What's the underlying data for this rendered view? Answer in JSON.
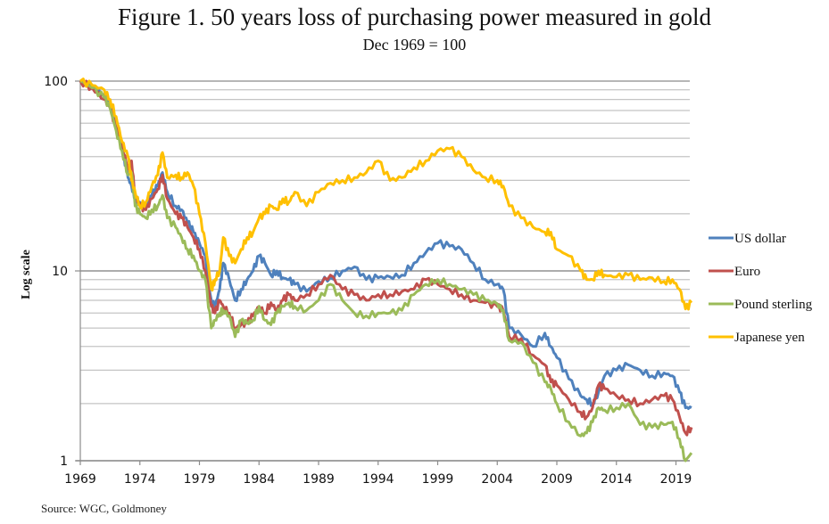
{
  "chart_data": {
    "type": "line",
    "title": "Figure 1. 50 years loss of purchasing power measured in gold",
    "subtitle": "Dec 1969 = 100",
    "xlabel": "",
    "ylabel": "Log scale",
    "yscale": "log",
    "ylim": [
      1,
      100
    ],
    "xlim": [
      1969,
      2020.3
    ],
    "y_ticks": [
      1,
      10,
      100
    ],
    "y_tick_labels": [
      "1",
      "10",
      "100"
    ],
    "x_ticks": [
      1969,
      1974,
      1979,
      1984,
      1989,
      1994,
      1999,
      2004,
      2009,
      2014,
      2019
    ],
    "x_tick_labels": [
      "1969",
      "1974",
      "1979",
      "1984",
      "1989",
      "1994",
      "1999",
      "2004",
      "2009",
      "2014",
      "2019"
    ],
    "grid": true,
    "legend_position": "right",
    "source": "Source: WGC, Goldmoney",
    "series": [
      {
        "name": "US dollar",
        "color": "#4F81BD",
        "x": [
          1969,
          1970,
          1971,
          1971.5,
          1972,
          1972.5,
          1973,
          1973.3,
          1973.6,
          1974,
          1974.5,
          1975,
          1975.5,
          1975.9,
          1976.3,
          1977,
          1977.5,
          1978,
          1978.5,
          1979,
          1979.5,
          1980,
          1980.3,
          1980.7,
          1981,
          1981.5,
          1982,
          1982.5,
          1983,
          1983.5,
          1984,
          1984.5,
          1985,
          1985.5,
          1986,
          1986.5,
          1987,
          1988,
          1989,
          1990,
          1991,
          1992,
          1993,
          1994,
          1995,
          1996,
          1997,
          1998,
          1999,
          2000,
          2001,
          2002,
          2003,
          2004,
          2004.5,
          2005,
          2006,
          2007,
          2008,
          2008.5,
          2009,
          2010,
          2011,
          2011.5,
          2012,
          2012.5,
          2013,
          2014,
          2015,
          2016,
          2017,
          2018,
          2018.7,
          2019.3,
          2019.8,
          2020.3
        ],
        "values": [
          100,
          93,
          85,
          75,
          58,
          45,
          31,
          28,
          24,
          23,
          22,
          25,
          28,
          33,
          26,
          22,
          21,
          18,
          16,
          14,
          12,
          7,
          6.5,
          8,
          11,
          9,
          7,
          8,
          9,
          10,
          12,
          11,
          9.5,
          10,
          9.2,
          9,
          8.5,
          7.8,
          8.8,
          9.2,
          10,
          10.5,
          9,
          9.2,
          9.3,
          9.5,
          11,
          12.5,
          14,
          13.5,
          13,
          11,
          9,
          8.5,
          8,
          5,
          4.6,
          4,
          4.7,
          4,
          3.5,
          2.7,
          2.2,
          2.1,
          2,
          2.3,
          2.8,
          3,
          3.2,
          3,
          2.8,
          2.9,
          2.8,
          2.3,
          1.9,
          1.9
        ]
      },
      {
        "name": "Euro",
        "color": "#C0504D",
        "x": [
          1969,
          1970,
          1971,
          1971.5,
          1972,
          1972.5,
          1973,
          1973.3,
          1973.6,
          1974,
          1974.5,
          1975,
          1975.5,
          1975.9,
          1976.3,
          1977,
          1977.5,
          1978,
          1978.5,
          1979,
          1979.5,
          1980,
          1980.3,
          1980.7,
          1981,
          1981.5,
          1982,
          1982.5,
          1983,
          1983.5,
          1984,
          1984.5,
          1985,
          1985.5,
          1986,
          1986.5,
          1987,
          1988,
          1989,
          1990,
          1991,
          1992,
          1993,
          1994,
          1995,
          1996,
          1997,
          1998,
          1999,
          2000,
          2001,
          2002,
          2003,
          2004,
          2004.5,
          2005,
          2006,
          2007,
          2008,
          2008.5,
          2009,
          2010,
          2011,
          2011.5,
          2012,
          2012.5,
          2013,
          2014,
          2015,
          2016,
          2017,
          2018,
          2018.7,
          2019.3,
          2019.8,
          2020.3
        ],
        "values": [
          100,
          92,
          80,
          72,
          57,
          45,
          35,
          38,
          25,
          22,
          21,
          24,
          27,
          32,
          24,
          20,
          19,
          17,
          15,
          13,
          10,
          6.5,
          6,
          7,
          6.5,
          6,
          5,
          5.2,
          5.3,
          5.8,
          6.5,
          6,
          6.8,
          6.2,
          7,
          7.5,
          7,
          7.5,
          8.5,
          9.5,
          8,
          7.5,
          7,
          7.5,
          7.5,
          7.8,
          8,
          9,
          8.5,
          8,
          7.5,
          7,
          6.8,
          6.5,
          6.2,
          4.5,
          4.4,
          3.6,
          3.2,
          2.6,
          2.5,
          2.1,
          1.8,
          1.7,
          1.9,
          2.5,
          2.4,
          2.2,
          2.1,
          2,
          2.1,
          2.2,
          2.1,
          1.7,
          1.4,
          1.5
        ]
      },
      {
        "name": "Pound sterling",
        "color": "#9BBB59",
        "x": [
          1969,
          1970,
          1971,
          1971.5,
          1972,
          1972.5,
          1973,
          1973.3,
          1973.6,
          1974,
          1974.5,
          1975,
          1975.5,
          1975.9,
          1976.3,
          1977,
          1977.5,
          1978,
          1978.5,
          1979,
          1979.5,
          1980,
          1980.3,
          1980.7,
          1981,
          1981.5,
          1982,
          1982.5,
          1983,
          1983.5,
          1984,
          1984.5,
          1985,
          1985.5,
          1986,
          1986.5,
          1987,
          1988,
          1989,
          1990,
          1991,
          1992,
          1993,
          1994,
          1995,
          1996,
          1997,
          1998,
          1999,
          2000,
          2001,
          2002,
          2003,
          2004,
          2004.5,
          2005,
          2006,
          2007,
          2008,
          2008.5,
          2009,
          2010,
          2011,
          2011.5,
          2012,
          2012.5,
          2013,
          2014,
          2015,
          2016,
          2017,
          2018,
          2018.7,
          2019.3,
          2019.8,
          2020.3
        ],
        "values": [
          100,
          92,
          82,
          72,
          55,
          43,
          32,
          33,
          22,
          20,
          19,
          21,
          22,
          25,
          19,
          17,
          15,
          13,
          12,
          10,
          9,
          5,
          5.5,
          6,
          6.2,
          5.8,
          4.5,
          5.5,
          5.3,
          5.5,
          6.5,
          5.5,
          5.2,
          6,
          6.5,
          6.8,
          6.5,
          6.2,
          7,
          8.5,
          7,
          6,
          5.8,
          6,
          6,
          6.2,
          7.5,
          8.5,
          9,
          8.5,
          8,
          7.5,
          7,
          6.7,
          6.2,
          4.3,
          4.2,
          3.3,
          2.6,
          2.4,
          2,
          1.6,
          1.35,
          1.4,
          1.6,
          1.9,
          1.85,
          1.9,
          2,
          1.55,
          1.5,
          1.55,
          1.6,
          1.3,
          1,
          1.1
        ]
      },
      {
        "name": "Japanese yen",
        "color": "#FFC000",
        "x": [
          1969,
          1970,
          1971,
          1971.5,
          1972,
          1972.5,
          1973,
          1973.3,
          1973.6,
          1974,
          1974.5,
          1975,
          1975.5,
          1975.9,
          1976.3,
          1977,
          1977.5,
          1978,
          1978.5,
          1979,
          1979.5,
          1980,
          1980.3,
          1980.7,
          1981,
          1981.5,
          1982,
          1982.5,
          1983,
          1983.5,
          1984,
          1984.5,
          1985,
          1985.5,
          1986,
          1986.5,
          1987,
          1988,
          1989,
          1990,
          1991,
          1992,
          1993,
          1994,
          1995,
          1996,
          1997,
          1998,
          1999,
          2000,
          2001,
          2002,
          2003,
          2004,
          2004.5,
          2005,
          2006,
          2007,
          2008,
          2008.5,
          2009,
          2010,
          2011,
          2011.5,
          2012,
          2012.5,
          2013,
          2014,
          2015,
          2016,
          2017,
          2018,
          2018.7,
          2019.3,
          2019.8,
          2020.3
        ],
        "values": [
          100,
          95,
          90,
          80,
          65,
          48,
          40,
          30,
          26,
          22,
          23,
          28,
          32,
          42,
          31,
          32,
          31,
          33,
          28,
          20,
          14,
          8,
          9,
          10,
          15,
          12,
          11,
          13,
          15,
          16,
          19,
          20,
          22,
          21,
          24,
          23,
          26,
          22,
          26,
          29,
          30,
          31,
          33,
          38,
          30,
          31,
          35,
          38,
          43,
          44,
          40,
          34,
          31,
          30,
          28,
          22,
          19,
          17,
          16,
          16,
          13,
          12,
          10,
          9,
          9,
          10,
          9.5,
          9.3,
          9.5,
          9,
          9.2,
          8.8,
          9,
          8,
          6.3,
          6.8
        ]
      }
    ]
  }
}
